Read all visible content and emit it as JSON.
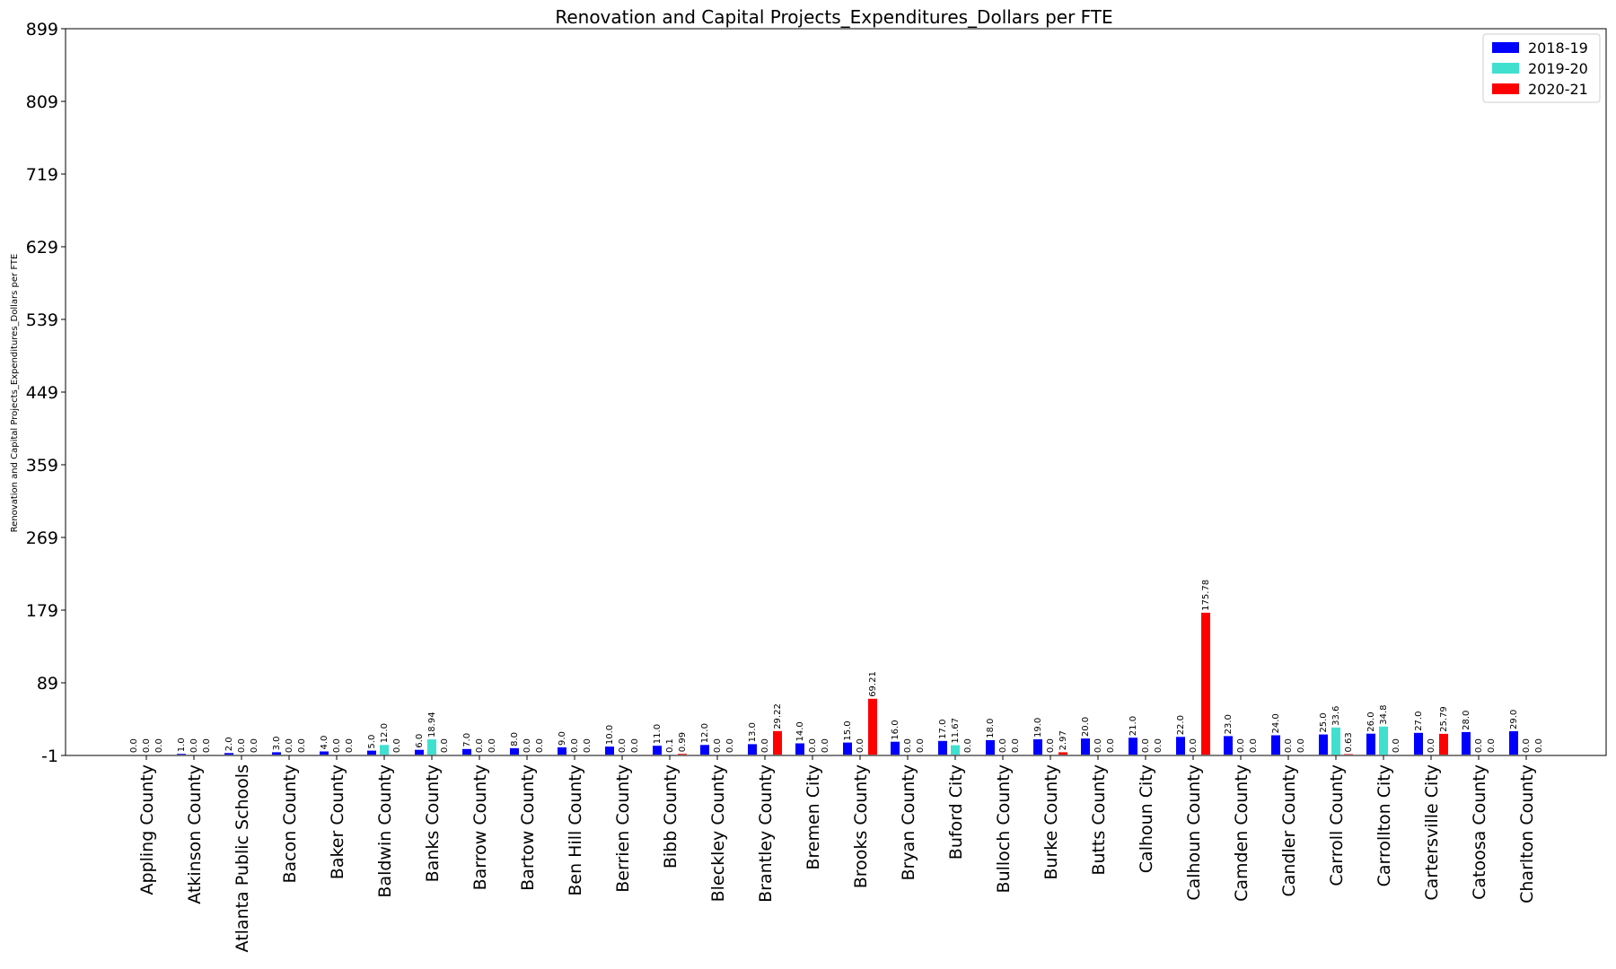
{
  "chart_data": {
    "type": "bar",
    "title": "Renovation and Capital Projects_Expenditures_Dollars per FTE",
    "xlabel": "",
    "ylabel": "Renovation and Capital Projects_Expenditures_Dollars per FTE",
    "ylim": [
      -1,
      899
    ],
    "yticks": [
      -1,
      89,
      179,
      269,
      359,
      449,
      539,
      629,
      719,
      809,
      899
    ],
    "grid": false,
    "legend_position": "top-right",
    "categories": [
      "Appling County",
      "Atkinson County",
      "Atlanta Public Schools",
      "Bacon County",
      "Baker County",
      "Baldwin County",
      "Banks County",
      "Barrow County",
      "Bartow County",
      "Ben Hill County",
      "Berrien County",
      "Bibb County",
      "Bleckley County",
      "Brantley County",
      "Bremen City",
      "Brooks County",
      "Bryan County",
      "Buford City",
      "Bulloch County",
      "Burke County",
      "Butts County",
      "Calhoun City",
      "Calhoun County",
      "Camden County",
      "Candler County",
      "Carroll County",
      "Carrollton City",
      "Cartersville City",
      "Catoosa County",
      "Charlton County"
    ],
    "series": [
      {
        "name": "2018-19",
        "color": "#0000ff",
        "values": [
          0.0,
          1.0,
          2.0,
          3.0,
          4.0,
          5.0,
          6.0,
          7.0,
          8.0,
          9.0,
          10.0,
          11.0,
          12.0,
          13.0,
          14.0,
          15.0,
          16.0,
          17.0,
          18.0,
          19.0,
          20.0,
          21.0,
          22.0,
          23.0,
          24.0,
          25.0,
          26.0,
          27.0,
          28.0,
          29.0
        ],
        "labels": [
          "0.0",
          "1.0",
          "2.0",
          "3.0",
          "4.0",
          "5.0",
          "6.0",
          "7.0",
          "8.0",
          "9.0",
          "10.0",
          "11.0",
          "12.0",
          "13.0",
          "14.0",
          "15.0",
          "16.0",
          "17.0",
          "18.0",
          "19.0",
          "20.0",
          "21.0",
          "22.0",
          "23.0",
          "24.0",
          "25.0",
          "26.0",
          "27.0",
          "28.0",
          "29.0"
        ]
      },
      {
        "name": "2019-20",
        "color": "#40e0d0",
        "values": [
          0.0,
          0.0,
          0.0,
          0.0,
          0.0,
          12.0,
          18.94,
          0.0,
          0.0,
          0.0,
          0.0,
          0.1,
          0.0,
          0.0,
          0.0,
          0.0,
          0.0,
          11.67,
          0.0,
          0.0,
          0.0,
          0.0,
          0.0,
          0.0,
          0.0,
          33.6,
          34.8,
          0.0,
          0.0,
          0.0
        ],
        "labels": [
          "0.0",
          "0.0",
          "0.0",
          "0.0",
          "0.0",
          "12.0",
          "18.94",
          "0.0",
          "0.0",
          "0.0",
          "0.0",
          "0.1",
          "0.0",
          "0.0",
          "0.0",
          "0.0",
          "0.0",
          "11.67",
          "0.0",
          "0.0",
          "0.0",
          "0.0",
          "0.0",
          "0.0",
          "0.0",
          "33.6",
          "34.8",
          "0.0",
          "0.0",
          "0.0"
        ]
      },
      {
        "name": "2020-21",
        "color": "#ff0000",
        "values": [
          0.0,
          0.0,
          0.0,
          0.0,
          0.0,
          0.0,
          0.0,
          0.0,
          0.0,
          0.0,
          0.0,
          0.99,
          0.0,
          29.22,
          0.0,
          69.21,
          0.0,
          0.0,
          0.0,
          2.97,
          0.0,
          0.0,
          175.78,
          0.0,
          0.0,
          0.63,
          0.0,
          25.79,
          0.0,
          0.0
        ],
        "labels": [
          "0.0",
          "0.0",
          "0.0",
          "0.0",
          "0.0",
          "0.0",
          "0.0",
          "0.0",
          "0.0",
          "0.0",
          "0.0",
          "0.99",
          "0.0",
          "29.22",
          "0.0",
          "69.21",
          "0.0",
          "0.0",
          "0.0",
          "2.97",
          "0.0",
          "0.0",
          "175.78",
          "0.0",
          "0.0",
          "0.63",
          "0.0",
          "25.79",
          "0.0",
          "0.0"
        ]
      }
    ]
  }
}
